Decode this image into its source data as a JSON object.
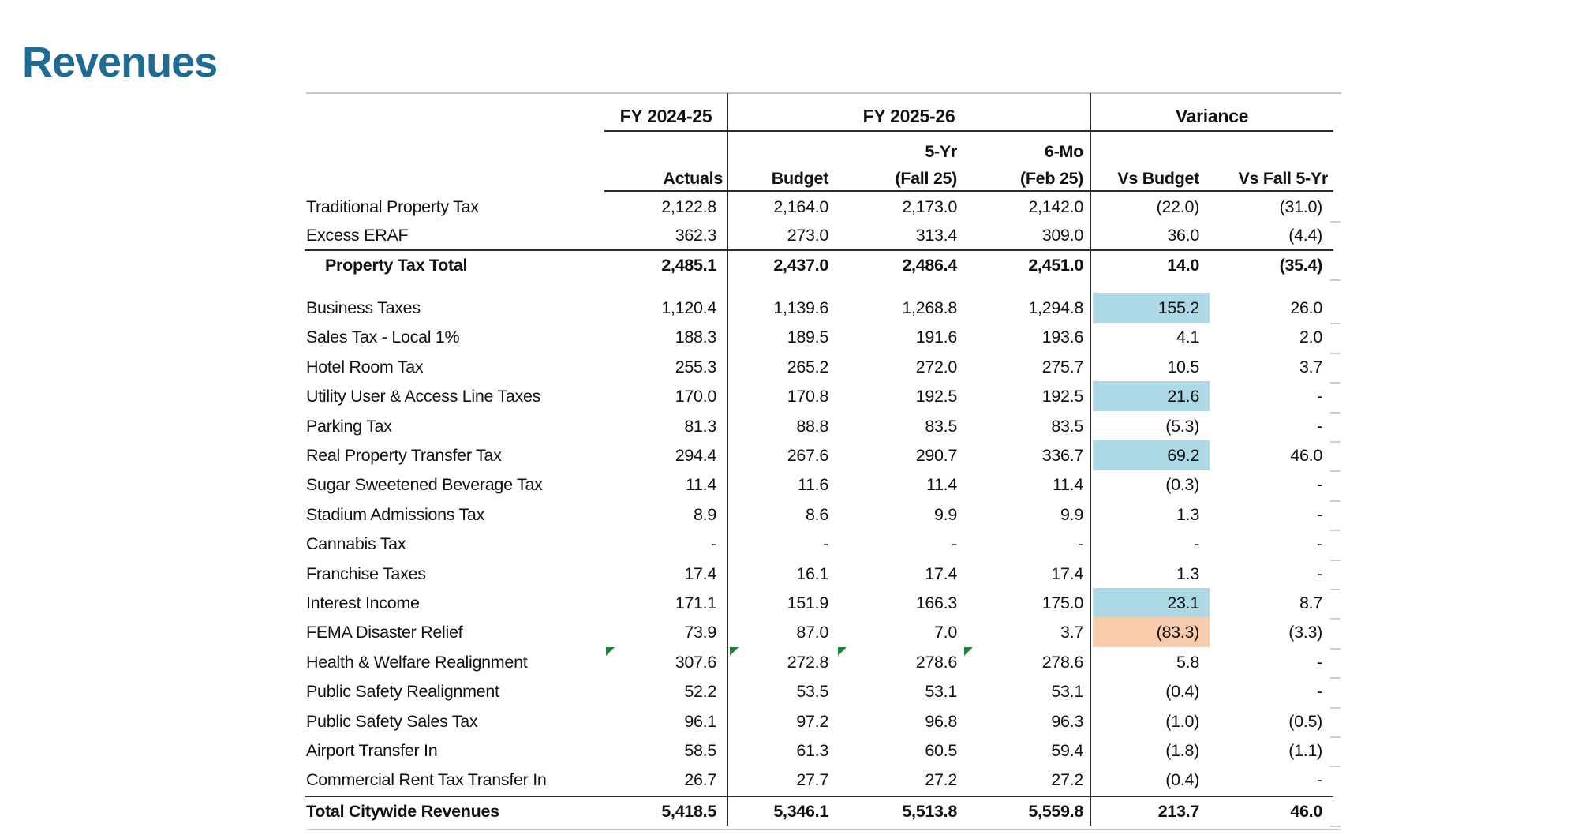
{
  "title": "Revenues",
  "colors": {
    "title": "#1F6B93",
    "highlight_blue": "#ADD8E6",
    "highlight_orange": "#F8CBAD",
    "flag_green": "#21803C",
    "line_dark": "#2B2B2B",
    "line_light": "#C8C8C8",
    "text": "#111111"
  },
  "table": {
    "column_groups": [
      {
        "label": "FY 2024-25",
        "columns": [
          "Actuals"
        ]
      },
      {
        "label": "FY 2025-26",
        "columns": [
          "Budget",
          "5-Yr (Fall 25)",
          "6-Mo (Feb 25)"
        ]
      },
      {
        "label": "Variance",
        "columns": [
          "Vs Budget",
          "Vs Fall 5-Yr"
        ]
      }
    ],
    "sub_headers_top": [
      "",
      "",
      "5-Yr",
      "6-Mo",
      "",
      ""
    ],
    "sub_headers": [
      "Actuals",
      "Budget",
      "(Fall 25)",
      "(Feb 25)",
      "Vs Budget",
      "Vs Fall 5-Yr"
    ],
    "rows": [
      {
        "label": "Traditional Property Tax",
        "values": [
          "2,122.8",
          "2,164.0",
          "2,173.0",
          "2,142.0",
          "(22.0)",
          "(31.0)"
        ]
      },
      {
        "label": "Excess ERAF",
        "values": [
          "362.3",
          "273.0",
          "313.4",
          "309.0",
          "36.0",
          "(4.4)"
        ]
      },
      {
        "label": "Property Tax Total",
        "bold": true,
        "indent": true,
        "values": [
          "2,485.1",
          "2,437.0",
          "2,486.4",
          "2,451.0",
          "14.0",
          "(35.4)"
        ]
      },
      {
        "label": "Business Taxes",
        "values": [
          "1,120.4",
          "1,139.6",
          "1,268.8",
          "1,294.8",
          "155.2",
          "26.0"
        ],
        "highlights": {
          "4": "blue"
        }
      },
      {
        "label": "Sales Tax - Local 1%",
        "values": [
          "188.3",
          "189.5",
          "191.6",
          "193.6",
          "4.1",
          "2.0"
        ]
      },
      {
        "label": "Hotel Room Tax",
        "values": [
          "255.3",
          "265.2",
          "272.0",
          "275.7",
          "10.5",
          "3.7"
        ]
      },
      {
        "label": "Utility User & Access Line Taxes",
        "values": [
          "170.0",
          "170.8",
          "192.5",
          "192.5",
          "21.6",
          "-"
        ],
        "highlights": {
          "4": "blue"
        }
      },
      {
        "label": "Parking Tax",
        "values": [
          "81.3",
          "88.8",
          "83.5",
          "83.5",
          "(5.3)",
          "-"
        ]
      },
      {
        "label": "Real Property Transfer Tax",
        "values": [
          "294.4",
          "267.6",
          "290.7",
          "336.7",
          "69.2",
          "46.0"
        ],
        "highlights": {
          "4": "blue"
        }
      },
      {
        "label": "Sugar Sweetened Beverage Tax",
        "values": [
          "11.4",
          "11.6",
          "11.4",
          "11.4",
          "(0.3)",
          "-"
        ]
      },
      {
        "label": "Stadium Admissions Tax",
        "values": [
          "8.9",
          "8.6",
          "9.9",
          "9.9",
          "1.3",
          "-"
        ]
      },
      {
        "label": "Cannabis Tax",
        "values": [
          "-",
          "-",
          "-",
          "-",
          "-",
          "-"
        ]
      },
      {
        "label": "Franchise Taxes",
        "values": [
          "17.4",
          "16.1",
          "17.4",
          "17.4",
          "1.3",
          "-"
        ]
      },
      {
        "label": "Interest Income",
        "values": [
          "171.1",
          "151.9",
          "166.3",
          "175.0",
          "23.1",
          "8.7"
        ],
        "highlights": {
          "4": "blue"
        }
      },
      {
        "label": "FEMA Disaster Relief",
        "values": [
          "73.9",
          "87.0",
          "7.0",
          "3.7",
          "(83.3)",
          "(3.3)"
        ],
        "highlights": {
          "4": "orange"
        }
      },
      {
        "label": "Health & Welfare Realignment",
        "values": [
          "307.6",
          "272.8",
          "278.6",
          "278.6",
          "5.8",
          "-"
        ],
        "flags": [
          0,
          1,
          2,
          3
        ]
      },
      {
        "label": "Public Safety Realignment",
        "values": [
          "52.2",
          "53.5",
          "53.1",
          "53.1",
          "(0.4)",
          "-"
        ]
      },
      {
        "label": "Public Safety Sales Tax",
        "values": [
          "96.1",
          "97.2",
          "96.8",
          "96.3",
          "(1.0)",
          "(0.5)"
        ]
      },
      {
        "label": "Airport Transfer In",
        "values": [
          "58.5",
          "61.3",
          "60.5",
          "59.4",
          "(1.8)",
          "(1.1)"
        ]
      },
      {
        "label": "Commercial Rent Tax Transfer In",
        "values": [
          "26.7",
          "27.7",
          "27.2",
          "27.2",
          "(0.4)",
          "-"
        ]
      },
      {
        "label": "Total Citywide Revenues",
        "bold": true,
        "values": [
          "5,418.5",
          "5,346.1",
          "5,513.8",
          "5,559.8",
          "213.7",
          "46.0"
        ]
      }
    ]
  }
}
